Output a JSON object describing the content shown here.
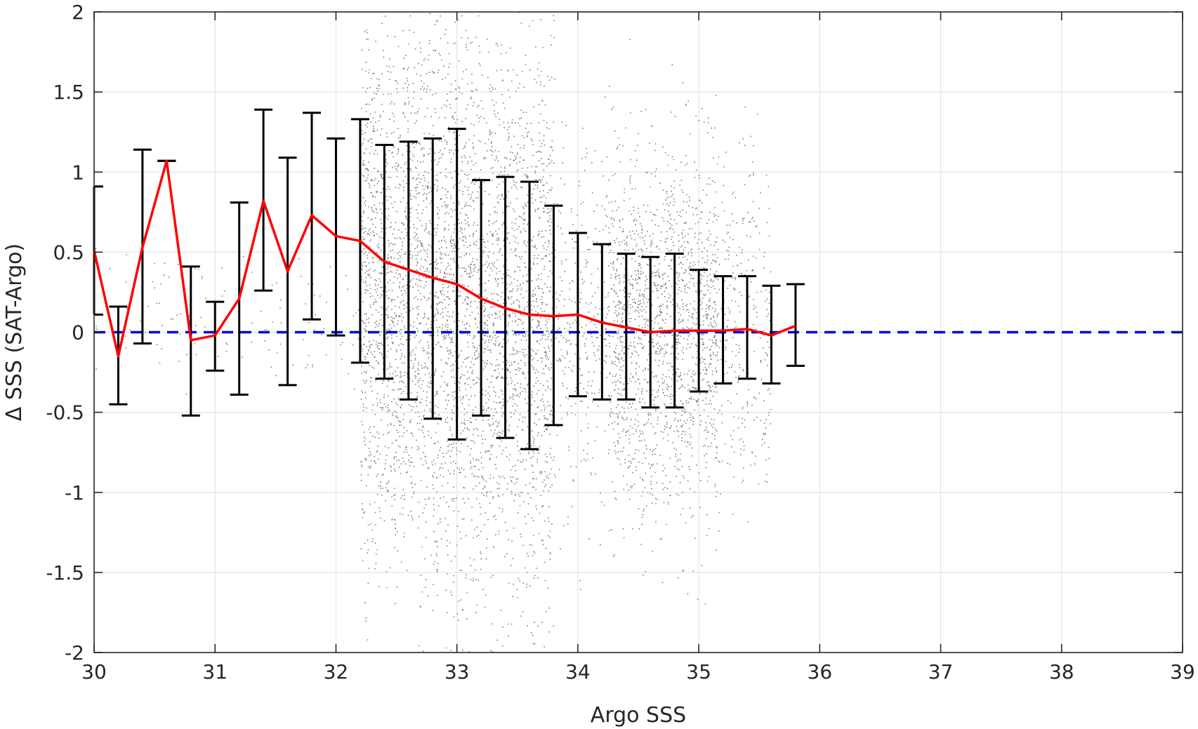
{
  "chart_data": {
    "type": "scatter",
    "title": "",
    "xlabel": "Argo SSS",
    "ylabel": "Δ SSS (SAT-Argo)",
    "xlim": [
      30,
      39
    ],
    "ylim": [
      -2,
      2
    ],
    "xticks": [
      "30",
      "31",
      "32",
      "33",
      "34",
      "35",
      "36",
      "37",
      "38",
      "39"
    ],
    "yticks": [
      "2",
      "1.5",
      "1",
      "0.5",
      "0",
      "-0.5",
      "-1",
      "-1.5",
      "-2"
    ],
    "grid": true,
    "legend": "none",
    "colors": {
      "scatter": "#808080",
      "mean_line": "#ff0000",
      "error_bars": "#000000",
      "zero_line": "#0000dd",
      "grid": "#e5e5e5",
      "axes": "#262626"
    },
    "scatter_description_bins": [
      {
        "x": [
          30.0,
          32.2
        ],
        "spread": 0.2,
        "density": "sparse"
      },
      {
        "x": [
          32.2,
          33.8
        ],
        "spread": 0.9,
        "density": "medium"
      },
      {
        "x": [
          33.8,
          35.6
        ],
        "spread": 0.55,
        "density": "dense"
      }
    ],
    "series": [
      {
        "kind": "mean_line",
        "x": [
          30.0,
          30.2,
          30.4,
          30.6,
          30.8,
          31.0,
          31.2,
          31.4,
          31.6,
          31.8,
          32.0,
          32.2,
          32.4,
          32.6,
          32.8,
          33.0,
          33.2,
          33.4,
          33.6,
          33.8,
          34.0,
          34.2,
          34.4,
          34.6,
          34.8,
          35.0,
          35.2,
          35.4,
          35.6,
          35.8
        ],
        "y": [
          0.51,
          -0.15,
          0.53,
          1.07,
          -0.05,
          -0.02,
          0.21,
          0.82,
          0.38,
          0.73,
          0.6,
          0.57,
          0.44,
          0.39,
          0.34,
          0.3,
          0.21,
          0.15,
          0.11,
          0.1,
          0.11,
          0.06,
          0.03,
          0.0,
          0.01,
          0.01,
          0.01,
          0.02,
          -0.02,
          0.04
        ]
      },
      {
        "kind": "error_bars",
        "x": [
          30.0,
          30.2,
          30.4,
          30.6,
          30.8,
          31.0,
          31.2,
          31.4,
          31.6,
          31.8,
          32.0,
          32.2,
          32.4,
          32.6,
          32.8,
          33.0,
          33.2,
          33.4,
          33.6,
          33.8,
          34.0,
          34.2,
          34.4,
          34.6,
          34.8,
          35.0,
          35.2,
          35.4,
          35.6,
          35.8
        ],
        "lower": [
          0.11,
          -0.45,
          -0.07,
          1.07,
          -0.52,
          -0.24,
          -0.39,
          0.26,
          -0.33,
          0.08,
          -0.02,
          -0.19,
          -0.29,
          -0.42,
          -0.54,
          -0.67,
          -0.52,
          -0.66,
          -0.73,
          -0.58,
          -0.4,
          -0.42,
          -0.42,
          -0.47,
          -0.47,
          -0.37,
          -0.32,
          -0.29,
          -0.32,
          -0.21
        ],
        "upper": [
          0.91,
          0.16,
          1.14,
          1.07,
          0.41,
          0.19,
          0.81,
          1.39,
          1.09,
          1.37,
          1.21,
          1.33,
          1.17,
          1.19,
          1.21,
          1.27,
          0.95,
          0.97,
          0.94,
          0.79,
          0.62,
          0.55,
          0.49,
          0.47,
          0.49,
          0.39,
          0.35,
          0.35,
          0.29,
          0.3
        ]
      },
      {
        "kind": "reference_line",
        "y": 0
      }
    ]
  }
}
